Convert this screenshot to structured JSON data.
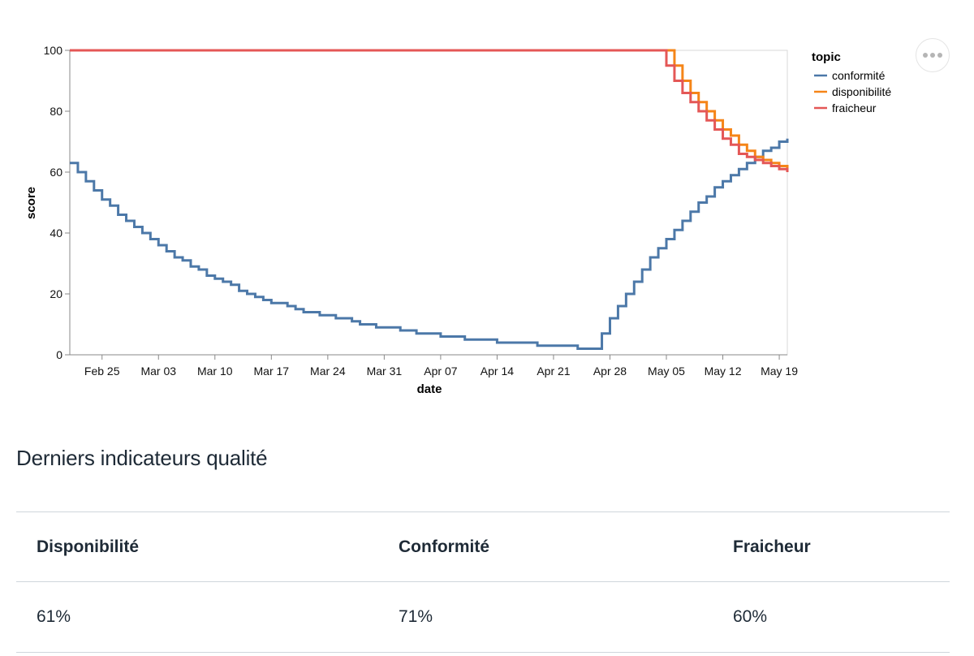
{
  "chart_data": {
    "type": "line",
    "interpolation": "step",
    "xlabel": "date",
    "ylabel": "score",
    "ylim": [
      0,
      100
    ],
    "yticks": [
      0,
      20,
      40,
      60,
      80,
      100
    ],
    "xlim": [
      "2024-02-21",
      "2024-05-20"
    ],
    "xticks": [
      "Feb 25",
      "Mar 03",
      "Mar 10",
      "Mar 17",
      "Mar 24",
      "Mar 31",
      "Apr 07",
      "Apr 14",
      "Apr 21",
      "Apr 28",
      "May 05",
      "May 12",
      "May 19"
    ],
    "xtick_dates": [
      "2024-02-25",
      "2024-03-03",
      "2024-03-10",
      "2024-03-17",
      "2024-03-24",
      "2024-03-31",
      "2024-04-07",
      "2024-04-14",
      "2024-04-21",
      "2024-04-28",
      "2024-05-05",
      "2024-05-12",
      "2024-05-19"
    ],
    "legend": {
      "title": "topic",
      "position": "right"
    },
    "grid": false,
    "series": [
      {
        "name": "conformité",
        "color": "#4c78a8",
        "points": [
          [
            "2024-02-21",
            63
          ],
          [
            "2024-02-22",
            60
          ],
          [
            "2024-02-23",
            57
          ],
          [
            "2024-02-24",
            54
          ],
          [
            "2024-02-25",
            51
          ],
          [
            "2024-02-26",
            49
          ],
          [
            "2024-02-27",
            46
          ],
          [
            "2024-02-28",
            44
          ],
          [
            "2024-02-29",
            42
          ],
          [
            "2024-03-01",
            40
          ],
          [
            "2024-03-02",
            38
          ],
          [
            "2024-03-03",
            36
          ],
          [
            "2024-03-04",
            34
          ],
          [
            "2024-03-05",
            32
          ],
          [
            "2024-03-06",
            31
          ],
          [
            "2024-03-07",
            29
          ],
          [
            "2024-03-08",
            28
          ],
          [
            "2024-03-09",
            26
          ],
          [
            "2024-03-10",
            25
          ],
          [
            "2024-03-11",
            24
          ],
          [
            "2024-03-12",
            23
          ],
          [
            "2024-03-13",
            21
          ],
          [
            "2024-03-14",
            20
          ],
          [
            "2024-03-15",
            19
          ],
          [
            "2024-03-16",
            18
          ],
          [
            "2024-03-17",
            17
          ],
          [
            "2024-03-19",
            16
          ],
          [
            "2024-03-20",
            15
          ],
          [
            "2024-03-21",
            14
          ],
          [
            "2024-03-23",
            13
          ],
          [
            "2024-03-25",
            12
          ],
          [
            "2024-03-27",
            11
          ],
          [
            "2024-03-28",
            10
          ],
          [
            "2024-03-30",
            9
          ],
          [
            "2024-04-02",
            8
          ],
          [
            "2024-04-04",
            7
          ],
          [
            "2024-04-07",
            6
          ],
          [
            "2024-04-10",
            5
          ],
          [
            "2024-04-14",
            4
          ],
          [
            "2024-04-19",
            3
          ],
          [
            "2024-04-24",
            2
          ],
          [
            "2024-04-27",
            7
          ],
          [
            "2024-04-28",
            12
          ],
          [
            "2024-04-29",
            16
          ],
          [
            "2024-04-30",
            20
          ],
          [
            "2024-05-01",
            24
          ],
          [
            "2024-05-02",
            28
          ],
          [
            "2024-05-03",
            32
          ],
          [
            "2024-05-04",
            35
          ],
          [
            "2024-05-05",
            38
          ],
          [
            "2024-05-06",
            41
          ],
          [
            "2024-05-07",
            44
          ],
          [
            "2024-05-08",
            47
          ],
          [
            "2024-05-09",
            50
          ],
          [
            "2024-05-10",
            52
          ],
          [
            "2024-05-11",
            55
          ],
          [
            "2024-05-12",
            57
          ],
          [
            "2024-05-13",
            59
          ],
          [
            "2024-05-14",
            61
          ],
          [
            "2024-05-15",
            63
          ],
          [
            "2024-05-16",
            65
          ],
          [
            "2024-05-17",
            67
          ],
          [
            "2024-05-18",
            68
          ],
          [
            "2024-05-19",
            70
          ],
          [
            "2024-05-20",
            71
          ]
        ]
      },
      {
        "name": "disponibilité",
        "color": "#f58518",
        "points": [
          [
            "2024-02-21",
            100
          ],
          [
            "2024-05-05",
            100
          ],
          [
            "2024-05-06",
            95
          ],
          [
            "2024-05-07",
            90
          ],
          [
            "2024-05-08",
            86
          ],
          [
            "2024-05-09",
            83
          ],
          [
            "2024-05-10",
            80
          ],
          [
            "2024-05-11",
            77
          ],
          [
            "2024-05-12",
            74
          ],
          [
            "2024-05-13",
            72
          ],
          [
            "2024-05-14",
            69
          ],
          [
            "2024-05-15",
            67
          ],
          [
            "2024-05-16",
            65
          ],
          [
            "2024-05-17",
            64
          ],
          [
            "2024-05-18",
            63
          ],
          [
            "2024-05-19",
            62
          ],
          [
            "2024-05-20",
            61
          ]
        ]
      },
      {
        "name": "fraicheur",
        "color": "#e45756",
        "points": [
          [
            "2024-02-21",
            100
          ],
          [
            "2024-05-04",
            100
          ],
          [
            "2024-05-05",
            95
          ],
          [
            "2024-05-06",
            90
          ],
          [
            "2024-05-07",
            86
          ],
          [
            "2024-05-08",
            83
          ],
          [
            "2024-05-09",
            80
          ],
          [
            "2024-05-10",
            77
          ],
          [
            "2024-05-11",
            74
          ],
          [
            "2024-05-12",
            71
          ],
          [
            "2024-05-13",
            69
          ],
          [
            "2024-05-14",
            66
          ],
          [
            "2024-05-15",
            65
          ],
          [
            "2024-05-16",
            64
          ],
          [
            "2024-05-17",
            63
          ],
          [
            "2024-05-18",
            62
          ],
          [
            "2024-05-19",
            61
          ],
          [
            "2024-05-20",
            60
          ]
        ]
      }
    ]
  },
  "section": {
    "title": "Derniers indicateurs qualité"
  },
  "table": {
    "headers": [
      "Disponibilité",
      "Conformité",
      "Fraicheur"
    ],
    "values": [
      "61%",
      "71%",
      "60%"
    ]
  },
  "icons": {
    "menu": "more-horizontal-icon"
  }
}
